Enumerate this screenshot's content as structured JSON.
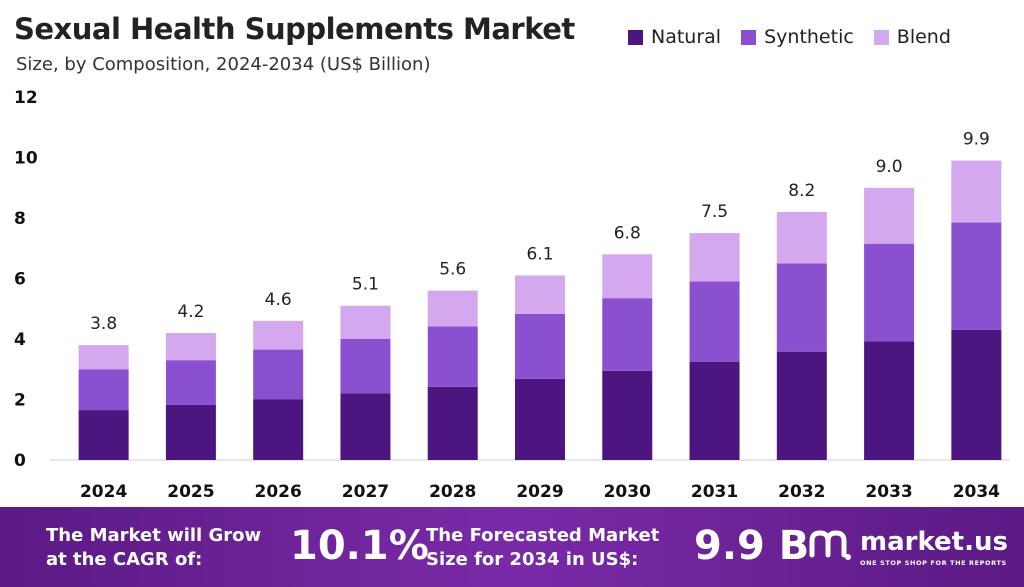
{
  "title": "Sexual Health Supplements Market",
  "subtitle": "Size, by Composition, 2024-2034 (US$ Billion)",
  "colors": {
    "natural": "#4c1580",
    "synthetic": "#8a50cf",
    "blend": "#d3a8ee",
    "footer": "#6a2196"
  },
  "chart_data": {
    "type": "bar",
    "stacked": true,
    "categories": [
      "2024",
      "2025",
      "2026",
      "2027",
      "2028",
      "2029",
      "2030",
      "2031",
      "2032",
      "2033",
      "2034"
    ],
    "series": [
      {
        "name": "Natural",
        "values": [
          1.65,
          1.82,
          2.0,
          2.2,
          2.42,
          2.68,
          2.95,
          3.25,
          3.58,
          3.92,
          4.3
        ]
      },
      {
        "name": "Synthetic",
        "values": [
          1.35,
          1.48,
          1.65,
          1.8,
          2.0,
          2.15,
          2.4,
          2.65,
          2.92,
          3.23,
          3.55
        ]
      },
      {
        "name": "Blend",
        "values": [
          0.8,
          0.9,
          0.95,
          1.1,
          1.18,
          1.27,
          1.45,
          1.6,
          1.7,
          1.85,
          2.05
        ]
      }
    ],
    "totals": [
      "3.8",
      "4.2",
      "4.6",
      "5.1",
      "5.6",
      "6.1",
      "6.8",
      "7.5",
      "8.2",
      "9.0",
      "9.9"
    ],
    "yticks": [
      "0",
      "2",
      "4",
      "6",
      "8",
      "10",
      "12"
    ],
    "ylim": [
      0,
      12
    ],
    "legend_position": "top-right",
    "grid": false
  },
  "footer": {
    "cagr_text_1": "The Market will Grow",
    "cagr_text_2": "at the CAGR of:",
    "cagr_value": "10.1%",
    "forecast_text_1": "The Forecasted Market",
    "forecast_text_2": "Size for 2034 in US$:",
    "forecast_value": "9.9 B",
    "logo_name": "market.us",
    "logo_tagline": "ONE STOP SHOP FOR THE REPORTS",
    "logo_icon": "market-us-logo-icon"
  }
}
